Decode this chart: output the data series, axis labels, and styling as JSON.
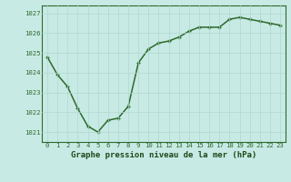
{
  "hours": [
    0,
    1,
    2,
    3,
    4,
    5,
    6,
    7,
    8,
    9,
    10,
    11,
    12,
    13,
    14,
    15,
    16,
    17,
    18,
    19,
    20,
    21,
    22,
    23
  ],
  "pressure": [
    1024.8,
    1023.9,
    1023.3,
    1022.2,
    1021.3,
    1021.0,
    1021.6,
    1021.7,
    1022.3,
    1024.5,
    1025.2,
    1025.5,
    1025.6,
    1025.8,
    1026.1,
    1026.3,
    1026.3,
    1026.3,
    1026.7,
    1026.8,
    1026.7,
    1026.6,
    1026.5,
    1026.4
  ],
  "line_color": "#2d6a2d",
  "marker_color": "#2d6a2d",
  "bg_color": "#c8eae4",
  "grid_color": "#b0d8d0",
  "title": "Graphe pression niveau de la mer (hPa)",
  "ylabel_values": [
    1021,
    1022,
    1023,
    1024,
    1025,
    1026,
    1027
  ],
  "ylim": [
    1020.5,
    1027.4
  ],
  "xlim": [
    -0.5,
    23.5
  ],
  "title_color": "#1a4a1a",
  "title_fontsize": 6.5,
  "axis_color": "#2d6a2d",
  "tick_fontsize": 5.2,
  "linewidth": 1.1
}
